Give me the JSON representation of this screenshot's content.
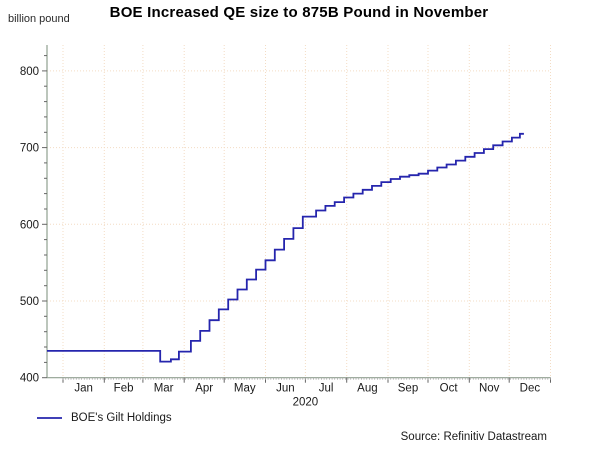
{
  "chart_data": {
    "type": "line",
    "title": "BOE Increased QE size to 875B Pound in November",
    "ylabel": "billion pound",
    "xlabel": "2020",
    "source": "Source: Refinitiv Datastream",
    "grid": "dotted",
    "months": [
      "Jan",
      "Feb",
      "Mar",
      "Apr",
      "May",
      "Jun",
      "Jul",
      "Aug",
      "Sep",
      "Oct",
      "Nov",
      "Dec"
    ],
    "month_boundary_days": [
      0,
      31,
      60,
      91,
      121,
      152,
      182,
      213,
      244,
      274,
      305,
      335,
      366
    ],
    "y_ticks": [
      400,
      500,
      600,
      700,
      800
    ],
    "y_minor_step": 20,
    "ylim": [
      400,
      835
    ],
    "legend": {
      "position": "bottom-left",
      "entries": [
        "BOE's Gilt Holdings"
      ]
    },
    "colors": {
      "line": "#2525ad",
      "grid": "#f3dcc4",
      "axis": "#90a090",
      "tick": "#666666",
      "minor_tick": "#aaaaaa",
      "text": "#1a1a1a"
    },
    "series": [
      {
        "name": "BOE's Gilt Holdings",
        "step": "after",
        "start_day": -12,
        "end_day": 346,
        "points_day_value": [
          [
            -12,
            435
          ],
          [
            73,
            421
          ],
          [
            81,
            424
          ],
          [
            87,
            434
          ],
          [
            96,
            448
          ],
          [
            103,
            461
          ],
          [
            110,
            475
          ],
          [
            117,
            489
          ],
          [
            124,
            502
          ],
          [
            131,
            515
          ],
          [
            138,
            528
          ],
          [
            145,
            541
          ],
          [
            152,
            553
          ],
          [
            159,
            567
          ],
          [
            166,
            581
          ],
          [
            173,
            595
          ],
          [
            180,
            610
          ],
          [
            190,
            618
          ],
          [
            197,
            624
          ],
          [
            204,
            629
          ],
          [
            211,
            635
          ],
          [
            218,
            640
          ],
          [
            225,
            645
          ],
          [
            232,
            650
          ],
          [
            239,
            655
          ],
          [
            246,
            659
          ],
          [
            253,
            662
          ],
          [
            260,
            664
          ],
          [
            267,
            666
          ],
          [
            274,
            670
          ],
          [
            281,
            674
          ],
          [
            288,
            678
          ],
          [
            295,
            683
          ],
          [
            302,
            688
          ],
          [
            309,
            693
          ],
          [
            316,
            698
          ],
          [
            323,
            703
          ],
          [
            330,
            708
          ],
          [
            337,
            713
          ],
          [
            343,
            718
          ]
        ]
      }
    ]
  }
}
